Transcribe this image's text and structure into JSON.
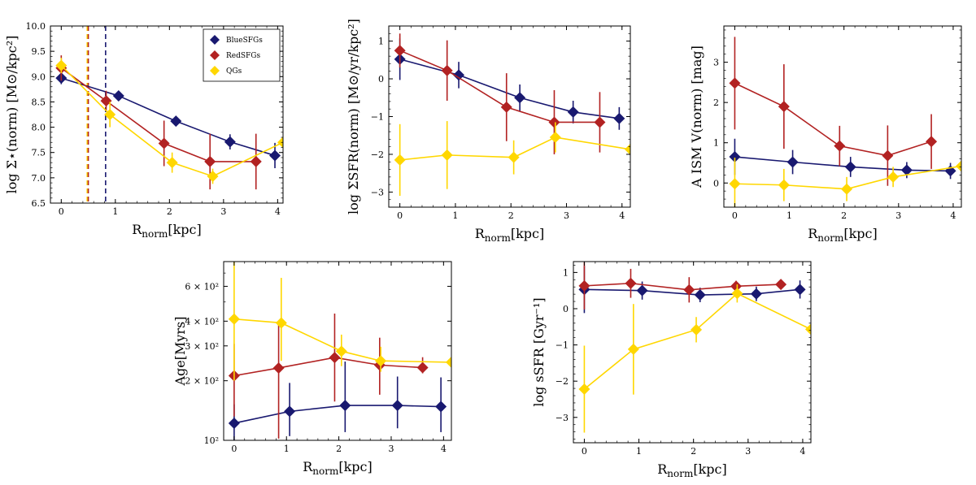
{
  "colors": {
    "BlueSFGs": "#191970",
    "RedSFGs": "#b22222",
    "QGs": "#ffd700"
  },
  "legend": [
    "BlueSFGs",
    "RedSFGs",
    "QGs"
  ],
  "chart_data": [
    {
      "id": "p1",
      "type": "line",
      "xlabel_main": "R",
      "xlabel_sub": "norm",
      "xlabel_unit": "[kpc]",
      "ylabel": "log Σ⋆(norm) [M⊙/kpc²]",
      "xlim": [
        -0.2,
        4.1
      ],
      "ylim": [
        6.5,
        10.0
      ],
      "yscale": "linear",
      "xticks": [
        0,
        1,
        2,
        3,
        4
      ],
      "yticks": [
        6.5,
        7.0,
        7.5,
        8.0,
        8.5,
        9.0,
        9.5,
        10.0
      ],
      "ytick_labels": [
        "6.5",
        "7.0",
        "7.5",
        "8.0",
        "8.5",
        "9.0",
        "9.5",
        "10.0"
      ],
      "vlines": [
        {
          "x": 0.48,
          "color": "QGs"
        },
        {
          "x": 0.5,
          "color": "RedSFGs"
        },
        {
          "x": 0.82,
          "color": "BlueSFGs"
        }
      ],
      "show_legend": true,
      "series": [
        {
          "name": "BlueSFGs",
          "points": [
            {
              "x": 0,
              "y": 8.97,
              "err": 0.12
            },
            {
              "x": 1.06,
              "y": 8.62,
              "err": 0.05
            },
            {
              "x": 2.12,
              "y": 8.12,
              "err": 0.06
            },
            {
              "x": 3.12,
              "y": 7.71,
              "err": 0.15
            },
            {
              "x": 3.95,
              "y": 7.44,
              "err": 0.25
            }
          ]
        },
        {
          "name": "RedSFGs",
          "points": [
            {
              "x": 0,
              "y": 9.17,
              "err": 0.25
            },
            {
              "x": 0.83,
              "y": 8.52,
              "err": 0.2
            },
            {
              "x": 1.9,
              "y": 7.68,
              "err": 0.45
            },
            {
              "x": 2.75,
              "y": 7.32,
              "err": 0.55
            },
            {
              "x": 3.6,
              "y": 7.32,
              "err": 0.55
            }
          ]
        },
        {
          "name": "QGs",
          "points": [
            {
              "x": 0,
              "y": 9.22,
              "err": 0.15
            },
            {
              "x": 0.9,
              "y": 8.25,
              "err": 0.25
            },
            {
              "x": 2.05,
              "y": 7.3,
              "err": 0.2
            },
            {
              "x": 2.8,
              "y": 7.03,
              "err": 0.15
            },
            {
              "x": 4.1,
              "y": 7.7,
              "err": 0.1
            }
          ]
        }
      ]
    },
    {
      "id": "p2",
      "type": "line",
      "xlabel_main": "R",
      "xlabel_sub": "norm",
      "xlabel_unit": "[kpc]",
      "ylabel": "log ΣSFR(norm) [M⊙/yr/kpc²]",
      "xlim": [
        -0.2,
        4.15
      ],
      "ylim": [
        -3.4,
        1.4
      ],
      "yscale": "linear",
      "xticks": [
        0,
        1,
        2,
        3,
        4
      ],
      "yticks": [
        -3,
        -2,
        -1,
        0,
        1
      ],
      "ytick_labels": [
        "−3",
        "−2",
        "−1",
        "0",
        "1"
      ],
      "series": [
        {
          "name": "BlueSFGs",
          "points": [
            {
              "x": 0,
              "y": 0.52,
              "err": 0.55
            },
            {
              "x": 1.06,
              "y": 0.1,
              "err": 0.35
            },
            {
              "x": 2.16,
              "y": -0.5,
              "err": 0.35
            },
            {
              "x": 3.12,
              "y": -0.88,
              "err": 0.3
            },
            {
              "x": 3.95,
              "y": -1.05,
              "err": 0.3
            }
          ]
        },
        {
          "name": "RedSFGs",
          "points": [
            {
              "x": 0,
              "y": 0.75,
              "err": 0.45
            },
            {
              "x": 0.85,
              "y": 0.22,
              "err": 0.8
            },
            {
              "x": 1.92,
              "y": -0.75,
              "err": 0.9
            },
            {
              "x": 2.78,
              "y": -1.15,
              "err": 0.85
            },
            {
              "x": 3.6,
              "y": -1.15,
              "err": 0.8
            }
          ]
        },
        {
          "name": "QGs",
          "points": [
            {
              "x": 0,
              "y": -2.15,
              "err": 0.95
            },
            {
              "x": 0.85,
              "y": -2.02,
              "err": 0.9
            },
            {
              "x": 2.05,
              "y": -2.08,
              "err": 0.45
            },
            {
              "x": 2.8,
              "y": -1.55,
              "err": 0.4
            },
            {
              "x": 4.15,
              "y": -1.87,
              "err": 0.1
            }
          ]
        }
      ]
    },
    {
      "id": "p3",
      "type": "line",
      "xlabel_main": "R",
      "xlabel_sub": "norm",
      "xlabel_unit": "[kpc]",
      "ylabel": "A ISM V(norm) [mag]",
      "xlim": [
        -0.2,
        4.15
      ],
      "ylim": [
        -0.6,
        3.9
      ],
      "yscale": "linear",
      "xticks": [
        0,
        1,
        2,
        3,
        4
      ],
      "yticks": [
        0,
        1,
        2,
        3
      ],
      "ytick_labels": [
        "0",
        "1",
        "2",
        "3"
      ],
      "series": [
        {
          "name": "BlueSFGs",
          "points": [
            {
              "x": 0,
              "y": 0.65,
              "err": 0.45
            },
            {
              "x": 1.06,
              "y": 0.52,
              "err": 0.3
            },
            {
              "x": 2.12,
              "y": 0.4,
              "err": 0.25
            },
            {
              "x": 3.15,
              "y": 0.32,
              "err": 0.2
            },
            {
              "x": 3.95,
              "y": 0.3,
              "err": 0.2
            }
          ]
        },
        {
          "name": "RedSFGs",
          "points": [
            {
              "x": 0,
              "y": 2.48,
              "err": 1.15
            },
            {
              "x": 0.9,
              "y": 1.9,
              "err": 1.05
            },
            {
              "x": 1.92,
              "y": 0.92,
              "err": 0.5
            },
            {
              "x": 2.8,
              "y": 0.68,
              "err": 0.75
            },
            {
              "x": 3.6,
              "y": 1.03,
              "err": 0.68
            }
          ]
        },
        {
          "name": "QGs",
          "points": [
            {
              "x": 0,
              "y": -0.02,
              "err": 0.65
            },
            {
              "x": 0.9,
              "y": -0.05,
              "err": 0.4
            },
            {
              "x": 2.05,
              "y": -0.15,
              "err": 0.3
            },
            {
              "x": 2.9,
              "y": 0.15,
              "err": 0.25
            },
            {
              "x": 4.15,
              "y": 0.42,
              "err": 0.1
            }
          ]
        }
      ]
    },
    {
      "id": "p4",
      "type": "line",
      "xlabel_main": "R",
      "xlabel_sub": "norm",
      "xlabel_unit": "[kpc]",
      "ylabel": "Age[Myrs]",
      "xlim": [
        -0.2,
        4.15
      ],
      "ylim": [
        100,
        800
      ],
      "yscale": "log",
      "xticks": [
        0,
        1,
        2,
        3,
        4
      ],
      "yticks": [
        100,
        200,
        300,
        400,
        600
      ],
      "ytick_labels": [
        "10²",
        "2 × 10²",
        "3 × 10²",
        "4 × 10²",
        "6 × 10²"
      ],
      "series": [
        {
          "name": "BlueSFGs",
          "points": [
            {
              "x": 0,
              "y": 122,
              "err_lo": 22,
              "err_hi": 30
            },
            {
              "x": 1.06,
              "y": 140,
              "err_lo": 35,
              "err_hi": 55
            },
            {
              "x": 2.12,
              "y": 150,
              "err_lo": 40,
              "err_hi": 100
            },
            {
              "x": 3.12,
              "y": 150,
              "err_lo": 35,
              "err_hi": 60
            },
            {
              "x": 3.95,
              "y": 148,
              "err_lo": 38,
              "err_hi": 60
            }
          ]
        },
        {
          "name": "RedSFGs",
          "points": [
            {
              "x": 0,
              "y": 212,
              "err_lo": 80,
              "err_hi": 95
            },
            {
              "x": 0.85,
              "y": 232,
              "err_lo": 130,
              "err_hi": 160
            },
            {
              "x": 1.92,
              "y": 262,
              "err_lo": 105,
              "err_hi": 175
            },
            {
              "x": 2.78,
              "y": 240,
              "err_lo": 70,
              "err_hi": 90
            },
            {
              "x": 3.6,
              "y": 233,
              "err_lo": 15,
              "err_hi": 30
            }
          ]
        },
        {
          "name": "QGs",
          "points": [
            {
              "x": 0,
              "y": 410,
              "err_lo": 210,
              "err_hi": 400
            },
            {
              "x": 0.9,
              "y": 392,
              "err_lo": 140,
              "err_hi": 270
            },
            {
              "x": 2.05,
              "y": 282,
              "err_lo": 45,
              "err_hi": 60
            },
            {
              "x": 2.8,
              "y": 252,
              "err_lo": 30,
              "err_hi": 45
            },
            {
              "x": 4.15,
              "y": 248,
              "err_lo": 5,
              "err_hi": 5
            }
          ]
        }
      ]
    },
    {
      "id": "p5",
      "type": "line",
      "xlabel_main": "R",
      "xlabel_sub": "norm",
      "xlabel_unit": "[kpc]",
      "ylabel": "log sSFR [Gyr⁻¹]",
      "xlim": [
        -0.2,
        4.15
      ],
      "ylim": [
        -3.7,
        1.3
      ],
      "yscale": "linear",
      "xticks": [
        0,
        1,
        2,
        3,
        4
      ],
      "yticks": [
        -3,
        -2,
        -1,
        0,
        1
      ],
      "ytick_labels": [
        "−3",
        "−2",
        "−1",
        "0",
        "1"
      ],
      "series": [
        {
          "name": "BlueSFGs",
          "points": [
            {
              "x": 0,
              "y": 0.53,
              "err": 0.65
            },
            {
              "x": 1.06,
              "y": 0.5,
              "err": 0.25
            },
            {
              "x": 2.12,
              "y": 0.38,
              "err": 0.2
            },
            {
              "x": 3.15,
              "y": 0.41,
              "err": 0.2
            },
            {
              "x": 3.95,
              "y": 0.53,
              "err": 0.25
            }
          ]
        },
        {
          "name": "RedSFGs",
          "points": [
            {
              "x": 0,
              "y": 0.63,
              "err": 0.65
            },
            {
              "x": 0.85,
              "y": 0.7,
              "err": 0.4
            },
            {
              "x": 1.92,
              "y": 0.52,
              "err": 0.35
            },
            {
              "x": 2.78,
              "y": 0.62,
              "err": 0.15
            },
            {
              "x": 3.6,
              "y": 0.67,
              "err": 0.05
            }
          ]
        },
        {
          "name": "QGs",
          "points": [
            {
              "x": 0,
              "y": -2.22,
              "err": 1.2
            },
            {
              "x": 0.9,
              "y": -1.12,
              "err": 1.25
            },
            {
              "x": 2.05,
              "y": -0.58,
              "err": 0.35
            },
            {
              "x": 2.8,
              "y": 0.42,
              "err": 0.25
            },
            {
              "x": 4.15,
              "y": -0.57,
              "err": 0.05
            }
          ]
        }
      ]
    }
  ]
}
